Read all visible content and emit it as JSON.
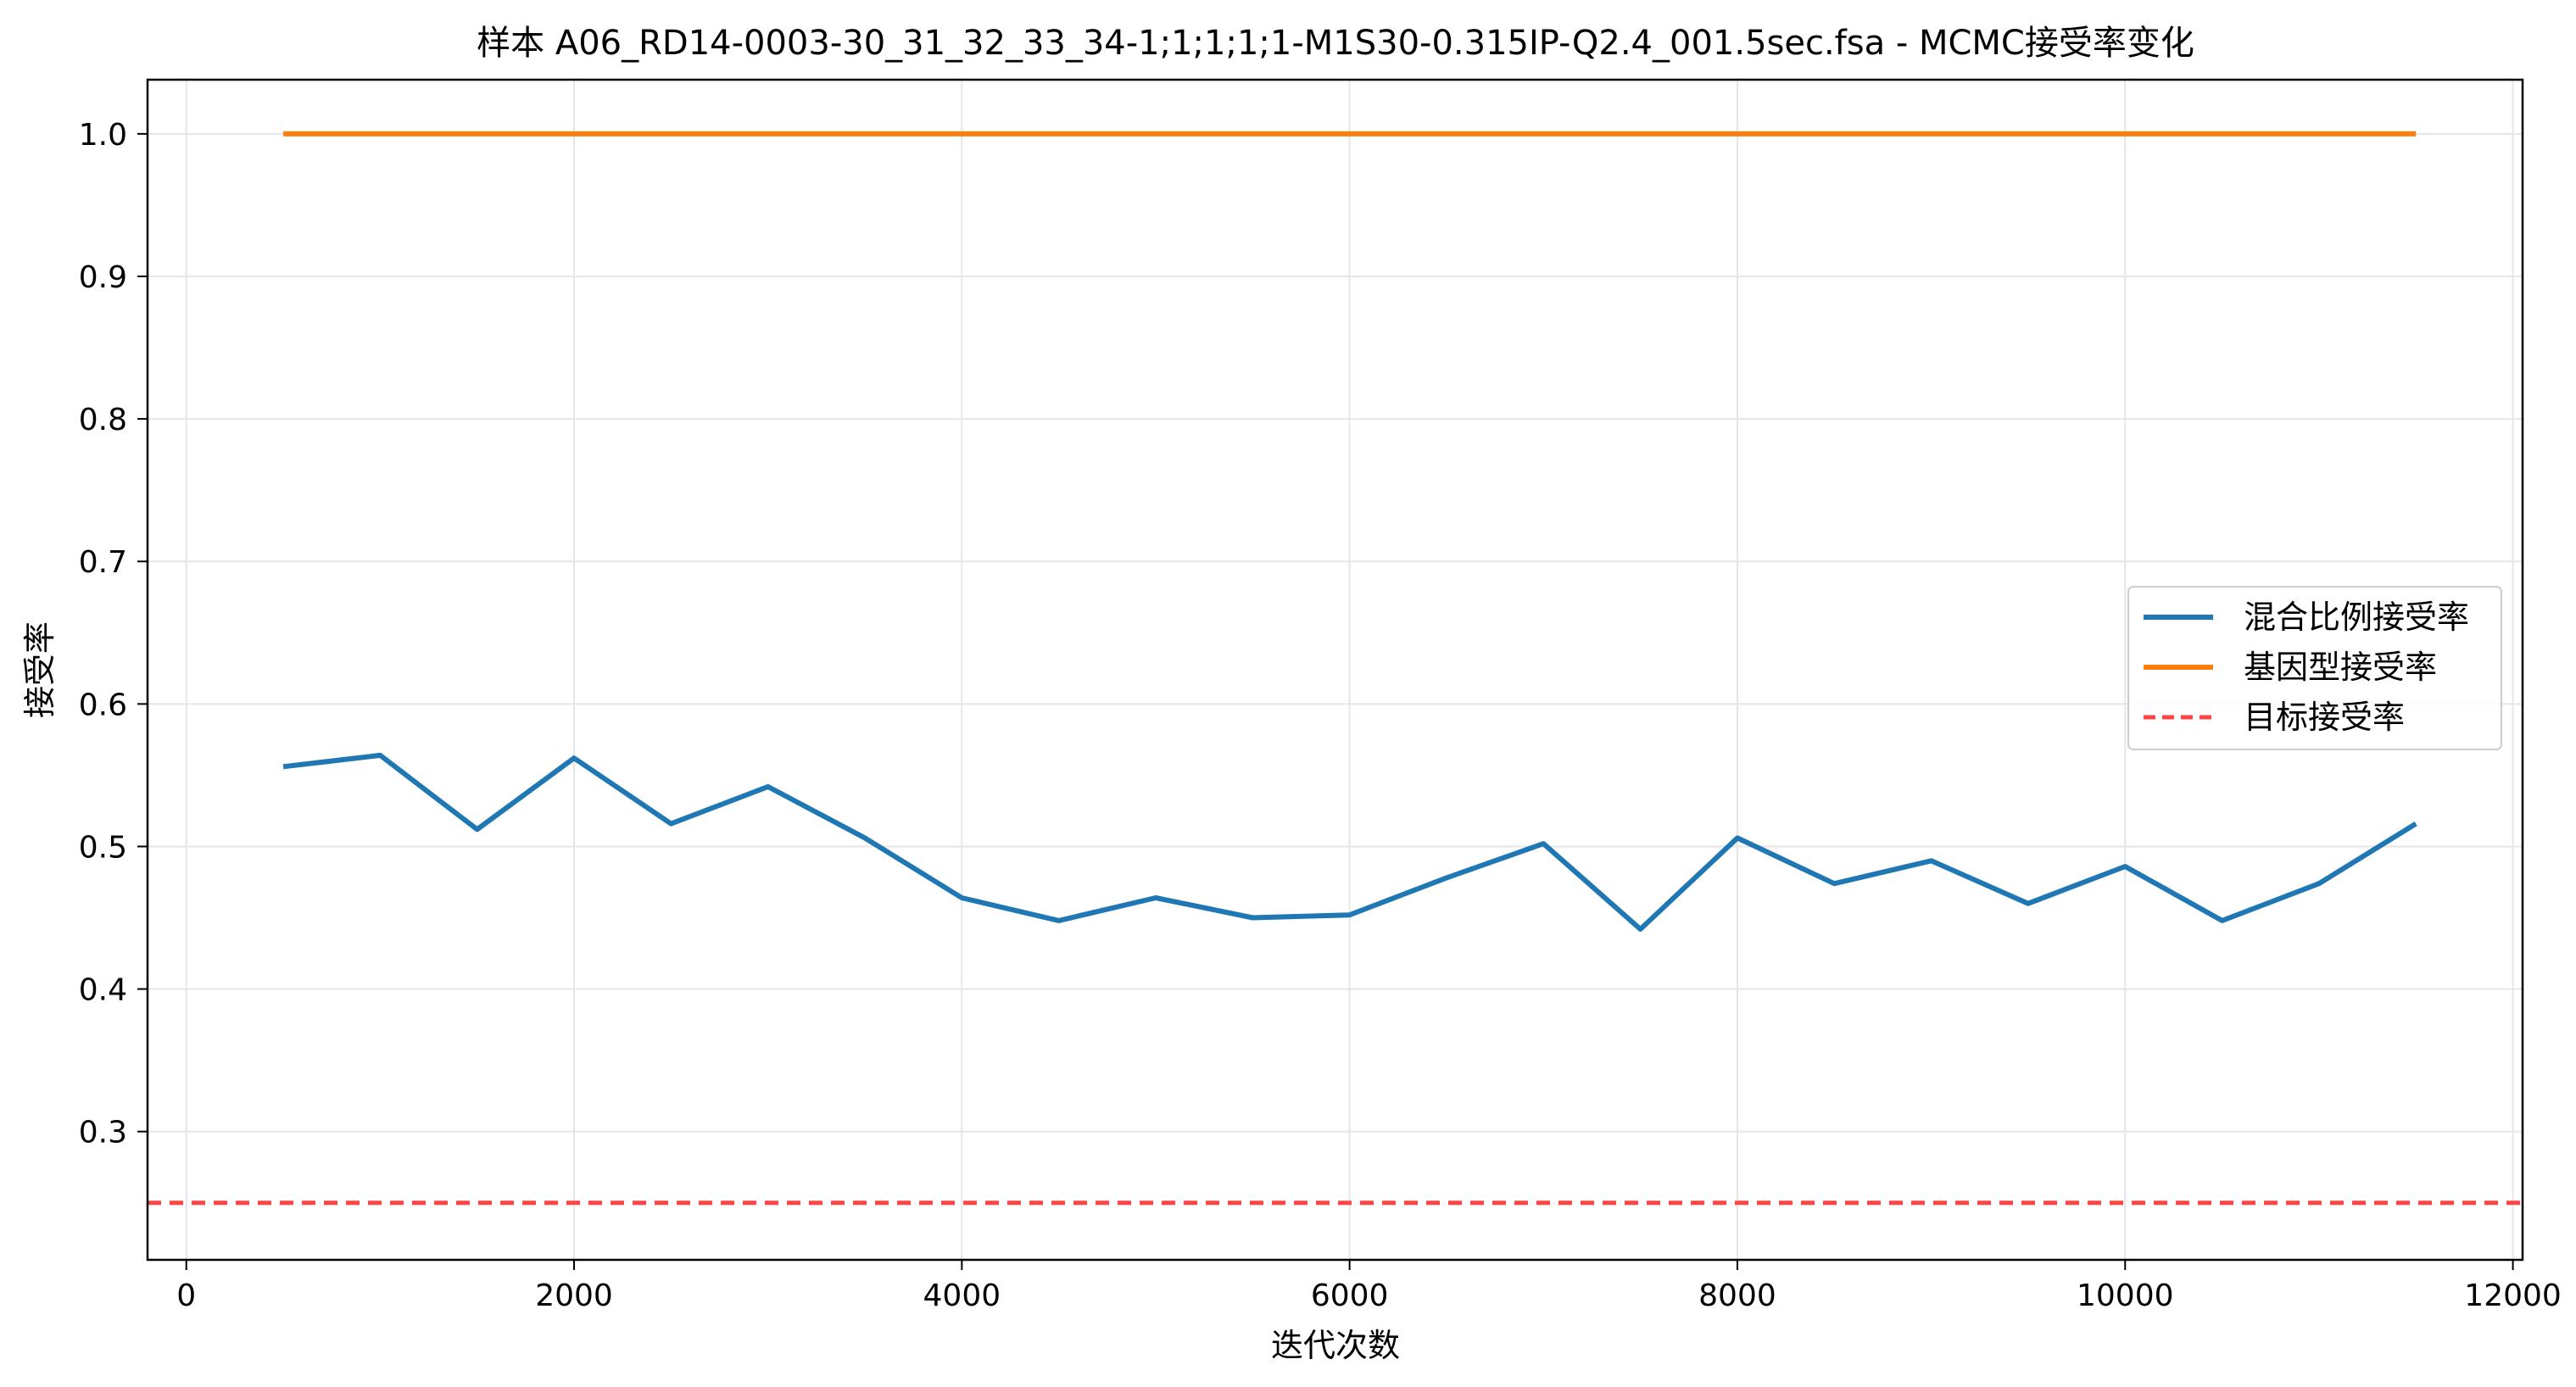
{
  "chart_data": {
    "type": "line",
    "title": "样本 A06_RD14-0003-30_31_32_33_34-1;1;1;1;1-M1S30-0.315IP-Q2.4_001.5sec.fsa - MCMC接受率变化",
    "xlabel": "迭代次数",
    "ylabel": "接受率",
    "xlim": [
      -200,
      12050
    ],
    "ylim": [
      0.21,
      1.038
    ],
    "xticks": [
      0,
      2000,
      4000,
      6000,
      8000,
      10000,
      12000
    ],
    "xtick_labels": [
      "0",
      "2000",
      "4000",
      "6000",
      "8000",
      "10000",
      "12000"
    ],
    "yticks": [
      0.3,
      0.4,
      0.5,
      0.6,
      0.7,
      0.8,
      0.9,
      1.0
    ],
    "ytick_labels": [
      "0.3",
      "0.4",
      "0.5",
      "0.6",
      "0.7",
      "0.8",
      "0.9",
      "1.0"
    ],
    "grid": true,
    "legend_position": "center-right",
    "x": [
      500,
      1000,
      1500,
      2000,
      2500,
      3000,
      3500,
      4000,
      4500,
      5000,
      5500,
      6000,
      6500,
      7000,
      7500,
      8000,
      8500,
      9000,
      9500,
      10000,
      10500,
      11000,
      11500
    ],
    "series": [
      {
        "name": "混合比例接受率",
        "color": "#1f77b4",
        "style": "solid",
        "values": [
          0.556,
          0.564,
          0.512,
          0.562,
          0.516,
          0.542,
          0.506,
          0.464,
          0.448,
          0.464,
          0.45,
          0.452,
          0.478,
          0.502,
          0.442,
          0.506,
          0.474,
          0.49,
          0.46,
          0.486,
          0.448,
          0.474,
          0.516
        ]
      },
      {
        "name": "基因型接受率",
        "color": "#ff7f0e",
        "style": "solid",
        "values": [
          1.0,
          1.0,
          1.0,
          1.0,
          1.0,
          1.0,
          1.0,
          1.0,
          1.0,
          1.0,
          1.0,
          1.0,
          1.0,
          1.0,
          1.0,
          1.0,
          1.0,
          1.0,
          1.0,
          1.0,
          1.0,
          1.0,
          1.0
        ]
      }
    ],
    "reference_lines": [
      {
        "name": "目标接受率",
        "color": "#ff4444",
        "style": "dashed",
        "y": 0.25
      }
    ]
  }
}
